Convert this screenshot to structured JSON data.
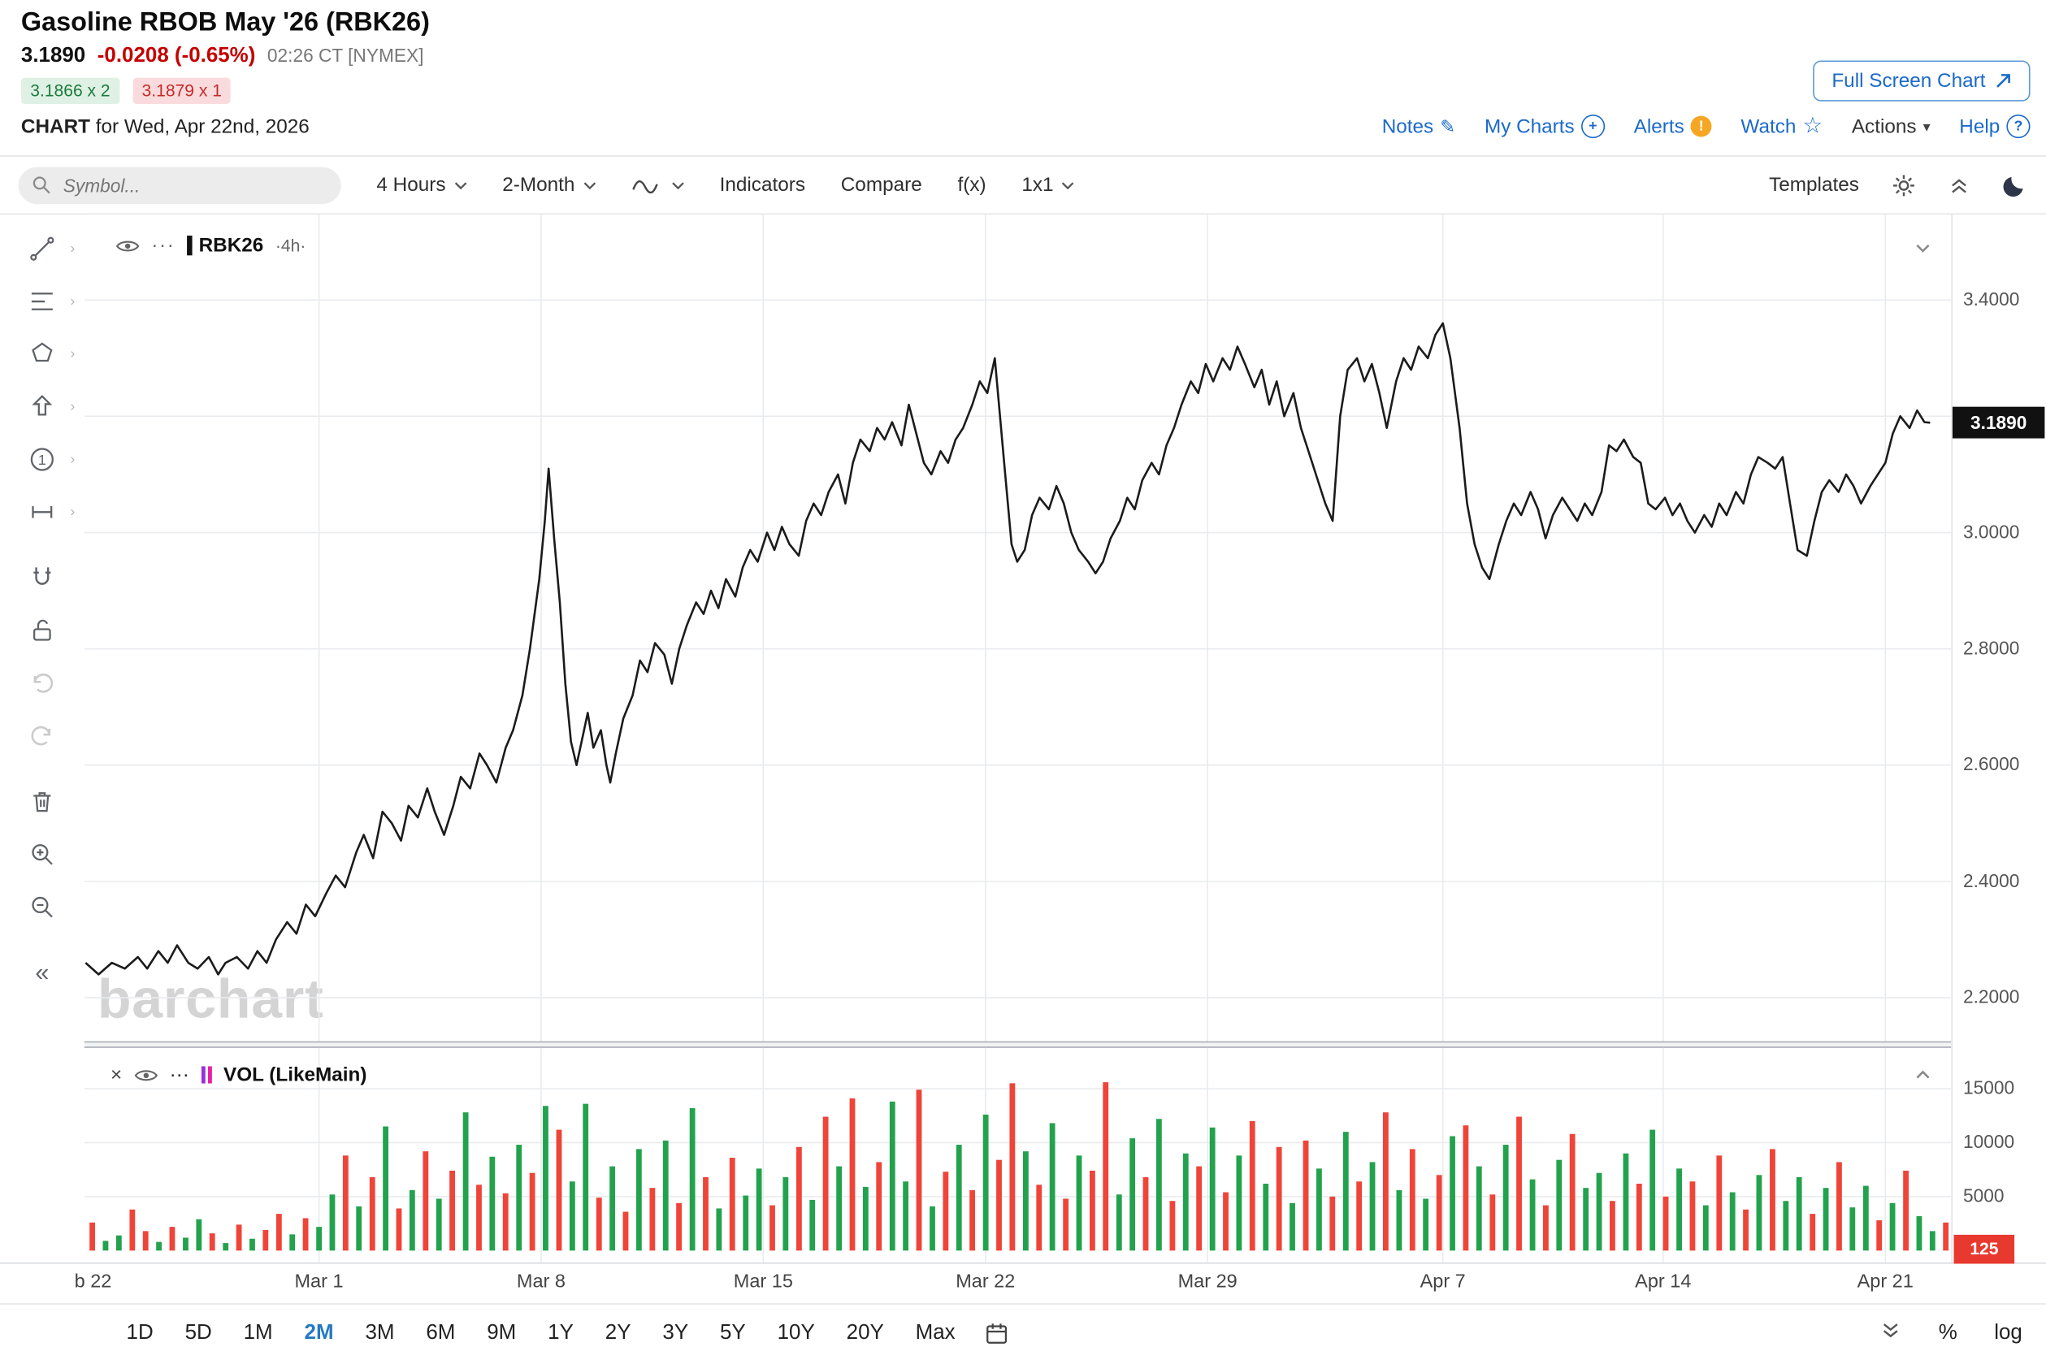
{
  "header": {
    "title": "Gasoline RBOB May '26 (RBK26)",
    "last_price": "3.1890",
    "change": "-0.0208 (-0.65%)",
    "quote_time": "02:26 CT [NYMEX]",
    "bid_quote": "3.1866 x 2",
    "ask_quote": "3.1879 x 1",
    "chart_word": "CHART",
    "chart_for": "for Wed, Apr 22nd, 2026",
    "fullscreen_label": "Full Screen Chart",
    "links": {
      "notes": "Notes",
      "my_charts": "My Charts",
      "alerts": "Alerts",
      "watch": "Watch",
      "actions": "Actions",
      "help": "Help"
    }
  },
  "toolbar": {
    "symbol_placeholder": "Symbol...",
    "interval": "4 Hours",
    "range": "2-Month",
    "indicators": "Indicators",
    "compare": "Compare",
    "fx": "f(x)",
    "layout": "1x1",
    "templates": "Templates"
  },
  "legend": {
    "symbol": "RBK26",
    "interval": "·4h·",
    "vol": "VOL (LikeMain)"
  },
  "watermark": "barchart",
  "axis": {
    "current_price_label": "3.1890",
    "current_volume_label": "125"
  },
  "footer": {
    "ranges": [
      "1D",
      "5D",
      "1M",
      "2M",
      "3M",
      "6M",
      "9M",
      "1Y",
      "2Y",
      "3Y",
      "5Y",
      "10Y",
      "20Y",
      "Max"
    ],
    "active_range": "2M",
    "percent": "%",
    "log": "log"
  },
  "colors": {
    "accent_blue": "#2479c2",
    "up_green": "#23a24d",
    "down_red": "#ef4438",
    "price_line": "#1b1b1b",
    "grid": "#e9ebee"
  },
  "chart_data": {
    "type": "line",
    "title": "RBK26 4-hour price with volume",
    "x_range": [
      "Feb 22",
      "Apr 22"
    ],
    "legend_position": "top-left",
    "grid": true,
    "price_axis": {
      "visible_min": 2.125,
      "visible_max": 3.547,
      "ticks": [
        3.4,
        3.2,
        3.0,
        2.8,
        2.6,
        2.4,
        2.2
      ],
      "label_ticks": [
        3.4,
        3.0,
        2.8,
        2.6,
        2.4,
        2.2
      ],
      "current": 3.189
    },
    "time_ticks": [
      {
        "label": "b 22",
        "t": 0.004
      },
      {
        "label": "Mar 1",
        "t": 0.125
      },
      {
        "label": "Mar 8",
        "t": 0.244
      },
      {
        "label": "Mar 15",
        "t": 0.363
      },
      {
        "label": "Mar 22",
        "t": 0.482
      },
      {
        "label": "Mar 29",
        "t": 0.601
      },
      {
        "label": "Apr 7",
        "t": 0.727
      },
      {
        "label": "Apr 14",
        "t": 0.845
      },
      {
        "label": "Apr 21",
        "t": 0.964
      }
    ],
    "price_series": [
      [
        0.0,
        2.26
      ],
      [
        0.007,
        2.24
      ],
      [
        0.014,
        2.26
      ],
      [
        0.021,
        2.25
      ],
      [
        0.028,
        2.27
      ],
      [
        0.033,
        2.25
      ],
      [
        0.039,
        2.28
      ],
      [
        0.044,
        2.26
      ],
      [
        0.049,
        2.29
      ],
      [
        0.055,
        2.26
      ],
      [
        0.06,
        2.25
      ],
      [
        0.066,
        2.27
      ],
      [
        0.071,
        2.24
      ],
      [
        0.075,
        2.26
      ],
      [
        0.081,
        2.27
      ],
      [
        0.087,
        2.25
      ],
      [
        0.092,
        2.28
      ],
      [
        0.097,
        2.26
      ],
      [
        0.102,
        2.3
      ],
      [
        0.108,
        2.33
      ],
      [
        0.113,
        2.31
      ],
      [
        0.118,
        2.36
      ],
      [
        0.123,
        2.34
      ],
      [
        0.129,
        2.38
      ],
      [
        0.134,
        2.41
      ],
      [
        0.139,
        2.39
      ],
      [
        0.145,
        2.45
      ],
      [
        0.149,
        2.48
      ],
      [
        0.154,
        2.44
      ],
      [
        0.159,
        2.52
      ],
      [
        0.164,
        2.5
      ],
      [
        0.169,
        2.47
      ],
      [
        0.173,
        2.53
      ],
      [
        0.178,
        2.51
      ],
      [
        0.183,
        2.56
      ],
      [
        0.187,
        2.52
      ],
      [
        0.192,
        2.48
      ],
      [
        0.197,
        2.53
      ],
      [
        0.201,
        2.58
      ],
      [
        0.206,
        2.56
      ],
      [
        0.211,
        2.62
      ],
      [
        0.215,
        2.6
      ],
      [
        0.22,
        2.57
      ],
      [
        0.225,
        2.63
      ],
      [
        0.229,
        2.66
      ],
      [
        0.234,
        2.72
      ],
      [
        0.238,
        2.8
      ],
      [
        0.243,
        2.92
      ],
      [
        0.246,
        3.02
      ],
      [
        0.248,
        3.11
      ],
      [
        0.251,
        2.99
      ],
      [
        0.254,
        2.88
      ],
      [
        0.257,
        2.74
      ],
      [
        0.26,
        2.64
      ],
      [
        0.263,
        2.6
      ],
      [
        0.267,
        2.66
      ],
      [
        0.269,
        2.69
      ],
      [
        0.272,
        2.63
      ],
      [
        0.276,
        2.66
      ],
      [
        0.279,
        2.6
      ],
      [
        0.281,
        2.57
      ],
      [
        0.284,
        2.62
      ],
      [
        0.288,
        2.68
      ],
      [
        0.293,
        2.72
      ],
      [
        0.297,
        2.78
      ],
      [
        0.301,
        2.76
      ],
      [
        0.305,
        2.81
      ],
      [
        0.31,
        2.79
      ],
      [
        0.314,
        2.74
      ],
      [
        0.318,
        2.8
      ],
      [
        0.322,
        2.84
      ],
      [
        0.327,
        2.88
      ],
      [
        0.331,
        2.86
      ],
      [
        0.335,
        2.9
      ],
      [
        0.339,
        2.87
      ],
      [
        0.343,
        2.92
      ],
      [
        0.348,
        2.89
      ],
      [
        0.352,
        2.94
      ],
      [
        0.356,
        2.97
      ],
      [
        0.36,
        2.95
      ],
      [
        0.365,
        3.0
      ],
      [
        0.369,
        2.97
      ],
      [
        0.373,
        3.01
      ],
      [
        0.377,
        2.98
      ],
      [
        0.382,
        2.96
      ],
      [
        0.386,
        3.02
      ],
      [
        0.39,
        3.05
      ],
      [
        0.394,
        3.03
      ],
      [
        0.398,
        3.07
      ],
      [
        0.403,
        3.1
      ],
      [
        0.407,
        3.05
      ],
      [
        0.411,
        3.12
      ],
      [
        0.415,
        3.16
      ],
      [
        0.42,
        3.14
      ],
      [
        0.424,
        3.18
      ],
      [
        0.428,
        3.16
      ],
      [
        0.432,
        3.19
      ],
      [
        0.437,
        3.15
      ],
      [
        0.441,
        3.22
      ],
      [
        0.445,
        3.17
      ],
      [
        0.449,
        3.12
      ],
      [
        0.453,
        3.1
      ],
      [
        0.458,
        3.14
      ],
      [
        0.462,
        3.12
      ],
      [
        0.466,
        3.16
      ],
      [
        0.47,
        3.18
      ],
      [
        0.475,
        3.22
      ],
      [
        0.479,
        3.26
      ],
      [
        0.483,
        3.24
      ],
      [
        0.487,
        3.3
      ],
      [
        0.492,
        3.12
      ],
      [
        0.496,
        2.98
      ],
      [
        0.499,
        2.95
      ],
      [
        0.503,
        2.97
      ],
      [
        0.507,
        3.03
      ],
      [
        0.511,
        3.06
      ],
      [
        0.516,
        3.04
      ],
      [
        0.52,
        3.08
      ],
      [
        0.524,
        3.05
      ],
      [
        0.528,
        3.0
      ],
      [
        0.532,
        2.97
      ],
      [
        0.537,
        2.95
      ],
      [
        0.541,
        2.93
      ],
      [
        0.545,
        2.95
      ],
      [
        0.549,
        2.99
      ],
      [
        0.554,
        3.02
      ],
      [
        0.558,
        3.06
      ],
      [
        0.562,
        3.04
      ],
      [
        0.566,
        3.09
      ],
      [
        0.571,
        3.12
      ],
      [
        0.575,
        3.1
      ],
      [
        0.579,
        3.15
      ],
      [
        0.583,
        3.18
      ],
      [
        0.587,
        3.22
      ],
      [
        0.592,
        3.26
      ],
      [
        0.596,
        3.24
      ],
      [
        0.6,
        3.29
      ],
      [
        0.604,
        3.26
      ],
      [
        0.609,
        3.3
      ],
      [
        0.613,
        3.28
      ],
      [
        0.617,
        3.32
      ],
      [
        0.621,
        3.29
      ],
      [
        0.626,
        3.25
      ],
      [
        0.63,
        3.28
      ],
      [
        0.634,
        3.22
      ],
      [
        0.638,
        3.26
      ],
      [
        0.642,
        3.2
      ],
      [
        0.647,
        3.24
      ],
      [
        0.651,
        3.18
      ],
      [
        0.655,
        3.14
      ],
      [
        0.659,
        3.1
      ],
      [
        0.664,
        3.05
      ],
      [
        0.668,
        3.02
      ],
      [
        0.672,
        3.2
      ],
      [
        0.676,
        3.28
      ],
      [
        0.681,
        3.3
      ],
      [
        0.685,
        3.26
      ],
      [
        0.689,
        3.29
      ],
      [
        0.693,
        3.24
      ],
      [
        0.697,
        3.18
      ],
      [
        0.702,
        3.26
      ],
      [
        0.706,
        3.3
      ],
      [
        0.71,
        3.28
      ],
      [
        0.714,
        3.32
      ],
      [
        0.719,
        3.3
      ],
      [
        0.723,
        3.34
      ],
      [
        0.727,
        3.36
      ],
      [
        0.731,
        3.3
      ],
      [
        0.736,
        3.18
      ],
      [
        0.74,
        3.05
      ],
      [
        0.744,
        2.98
      ],
      [
        0.748,
        2.94
      ],
      [
        0.752,
        2.92
      ],
      [
        0.757,
        2.98
      ],
      [
        0.761,
        3.02
      ],
      [
        0.765,
        3.05
      ],
      [
        0.769,
        3.03
      ],
      [
        0.774,
        3.07
      ],
      [
        0.778,
        3.04
      ],
      [
        0.782,
        2.99
      ],
      [
        0.786,
        3.03
      ],
      [
        0.791,
        3.06
      ],
      [
        0.795,
        3.04
      ],
      [
        0.799,
        3.02
      ],
      [
        0.803,
        3.05
      ],
      [
        0.807,
        3.03
      ],
      [
        0.812,
        3.07
      ],
      [
        0.816,
        3.15
      ],
      [
        0.82,
        3.14
      ],
      [
        0.824,
        3.16
      ],
      [
        0.829,
        3.13
      ],
      [
        0.833,
        3.12
      ],
      [
        0.837,
        3.05
      ],
      [
        0.841,
        3.04
      ],
      [
        0.846,
        3.06
      ],
      [
        0.85,
        3.03
      ],
      [
        0.854,
        3.05
      ],
      [
        0.858,
        3.02
      ],
      [
        0.862,
        3.0
      ],
      [
        0.867,
        3.03
      ],
      [
        0.871,
        3.01
      ],
      [
        0.875,
        3.05
      ],
      [
        0.879,
        3.03
      ],
      [
        0.884,
        3.07
      ],
      [
        0.888,
        3.05
      ],
      [
        0.892,
        3.1
      ],
      [
        0.896,
        3.13
      ],
      [
        0.901,
        3.12
      ],
      [
        0.905,
        3.11
      ],
      [
        0.909,
        3.13
      ],
      [
        0.913,
        3.05
      ],
      [
        0.917,
        2.97
      ],
      [
        0.922,
        2.96
      ],
      [
        0.926,
        3.02
      ],
      [
        0.93,
        3.07
      ],
      [
        0.934,
        3.09
      ],
      [
        0.939,
        3.07
      ],
      [
        0.943,
        3.1
      ],
      [
        0.947,
        3.08
      ],
      [
        0.951,
        3.05
      ],
      [
        0.956,
        3.08
      ],
      [
        0.96,
        3.1
      ],
      [
        0.964,
        3.12
      ],
      [
        0.968,
        3.17
      ],
      [
        0.972,
        3.2
      ],
      [
        0.977,
        3.18
      ],
      [
        0.981,
        3.21
      ],
      [
        0.985,
        3.19
      ],
      [
        0.988,
        3.189
      ]
    ],
    "volume": {
      "ticks": [
        15000,
        10000,
        5000
      ],
      "current": 125,
      "values": [
        2600,
        900,
        1400,
        3800,
        1800,
        800,
        2200,
        1200,
        2900,
        1600,
        700,
        2400,
        1100,
        1900,
        3400,
        1500,
        3000,
        2200,
        5200,
        8800,
        4100,
        6800,
        11500,
        3900,
        5600,
        9200,
        4800,
        7400,
        12800,
        6100,
        8700,
        5300,
        9800,
        7200,
        13400,
        11200,
        6400,
        13600,
        4900,
        7800,
        3600,
        9400,
        5800,
        10200,
        4400,
        13200,
        6800,
        3900,
        8600,
        5100,
        7600,
        4200,
        6800,
        9600,
        4700,
        12400,
        7800,
        14100,
        5900,
        8200,
        13800,
        6400,
        14900,
        4100,
        7300,
        9800,
        5600,
        12600,
        8400,
        15500,
        9200,
        6100,
        11800,
        4800,
        8800,
        7400,
        15600,
        5200,
        10400,
        6800,
        12200,
        4600,
        9000,
        7800,
        11400,
        5400,
        8800,
        12000,
        6200,
        9600,
        4400,
        10200,
        7600,
        5000,
        11000,
        6400,
        8200,
        12800,
        5600,
        9400,
        4800,
        7000,
        10600,
        11600,
        7800,
        5200,
        9800,
        12400,
        6600,
        4200,
        8400,
        10800,
        5800,
        7200,
        4600,
        9000,
        6200,
        11200,
        5000,
        7600,
        6400,
        4200,
        8800,
        5400,
        3800,
        7000,
        9400,
        4600,
        6800,
        3400,
        5800,
        8200,
        4000,
        6000,
        2800,
        4400,
        7400,
        3200,
        1800,
        2600
      ],
      "colors": "rggrrgrggrgrgrrgrggrgrgrgrgrgrgrgrgrggrgrgrgrgrgrggrgrgrgrgrggrgrgrgrrgrgrgrrggrgrgrgrgrgrgrgrgrgrgrgrgrgrgrgrgrggrgrgrgrgrgrgrggrgrggrgrggr"
    }
  }
}
